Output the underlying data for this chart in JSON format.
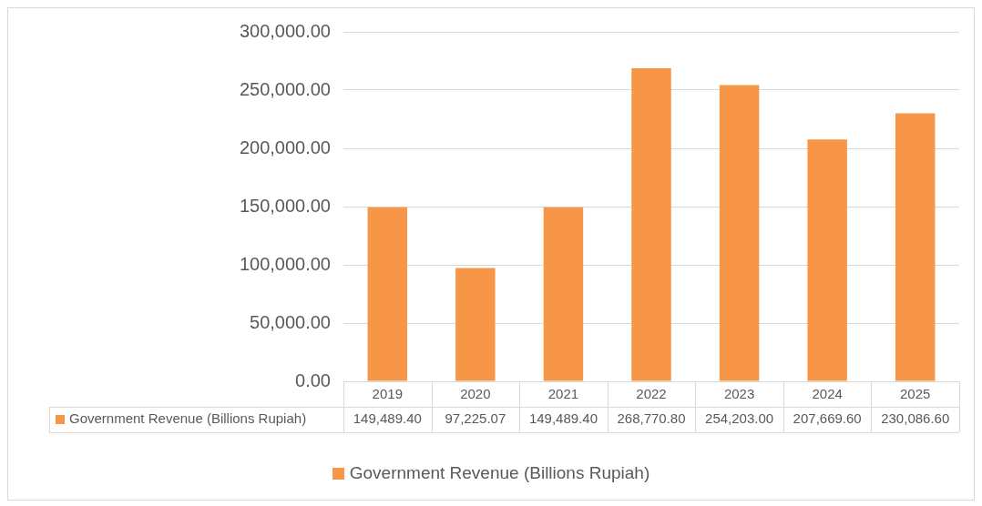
{
  "chart_data": {
    "type": "bar",
    "categories": [
      "2019",
      "2020",
      "2021",
      "2022",
      "2023",
      "2024",
      "2025"
    ],
    "series": [
      {
        "name": "Government Revenue (Billions Rupiah)",
        "color": "#f79646",
        "values": [
          149489.4,
          97225.07,
          149489.4,
          268770.8,
          254203.0,
          207669.6,
          230086.6
        ],
        "value_labels": [
          "149,489.40",
          "97,225.07",
          "149,489.40",
          "268,770.80",
          "254,203.00",
          "207,669.60",
          "230,086.60"
        ]
      }
    ],
    "ylim": [
      0,
      300000
    ],
    "yticks": [
      {
        "value": 0,
        "label": "0.00"
      },
      {
        "value": 50000,
        "label": "50,000.00"
      },
      {
        "value": 100000,
        "label": "100,000.00"
      },
      {
        "value": 150000,
        "label": "150,000.00"
      },
      {
        "value": 200000,
        "label": "200,000.00"
      },
      {
        "value": 250000,
        "label": "250,000.00"
      },
      {
        "value": 300000,
        "label": "300,000.00"
      }
    ],
    "grid": "y",
    "legend": "bottom"
  }
}
